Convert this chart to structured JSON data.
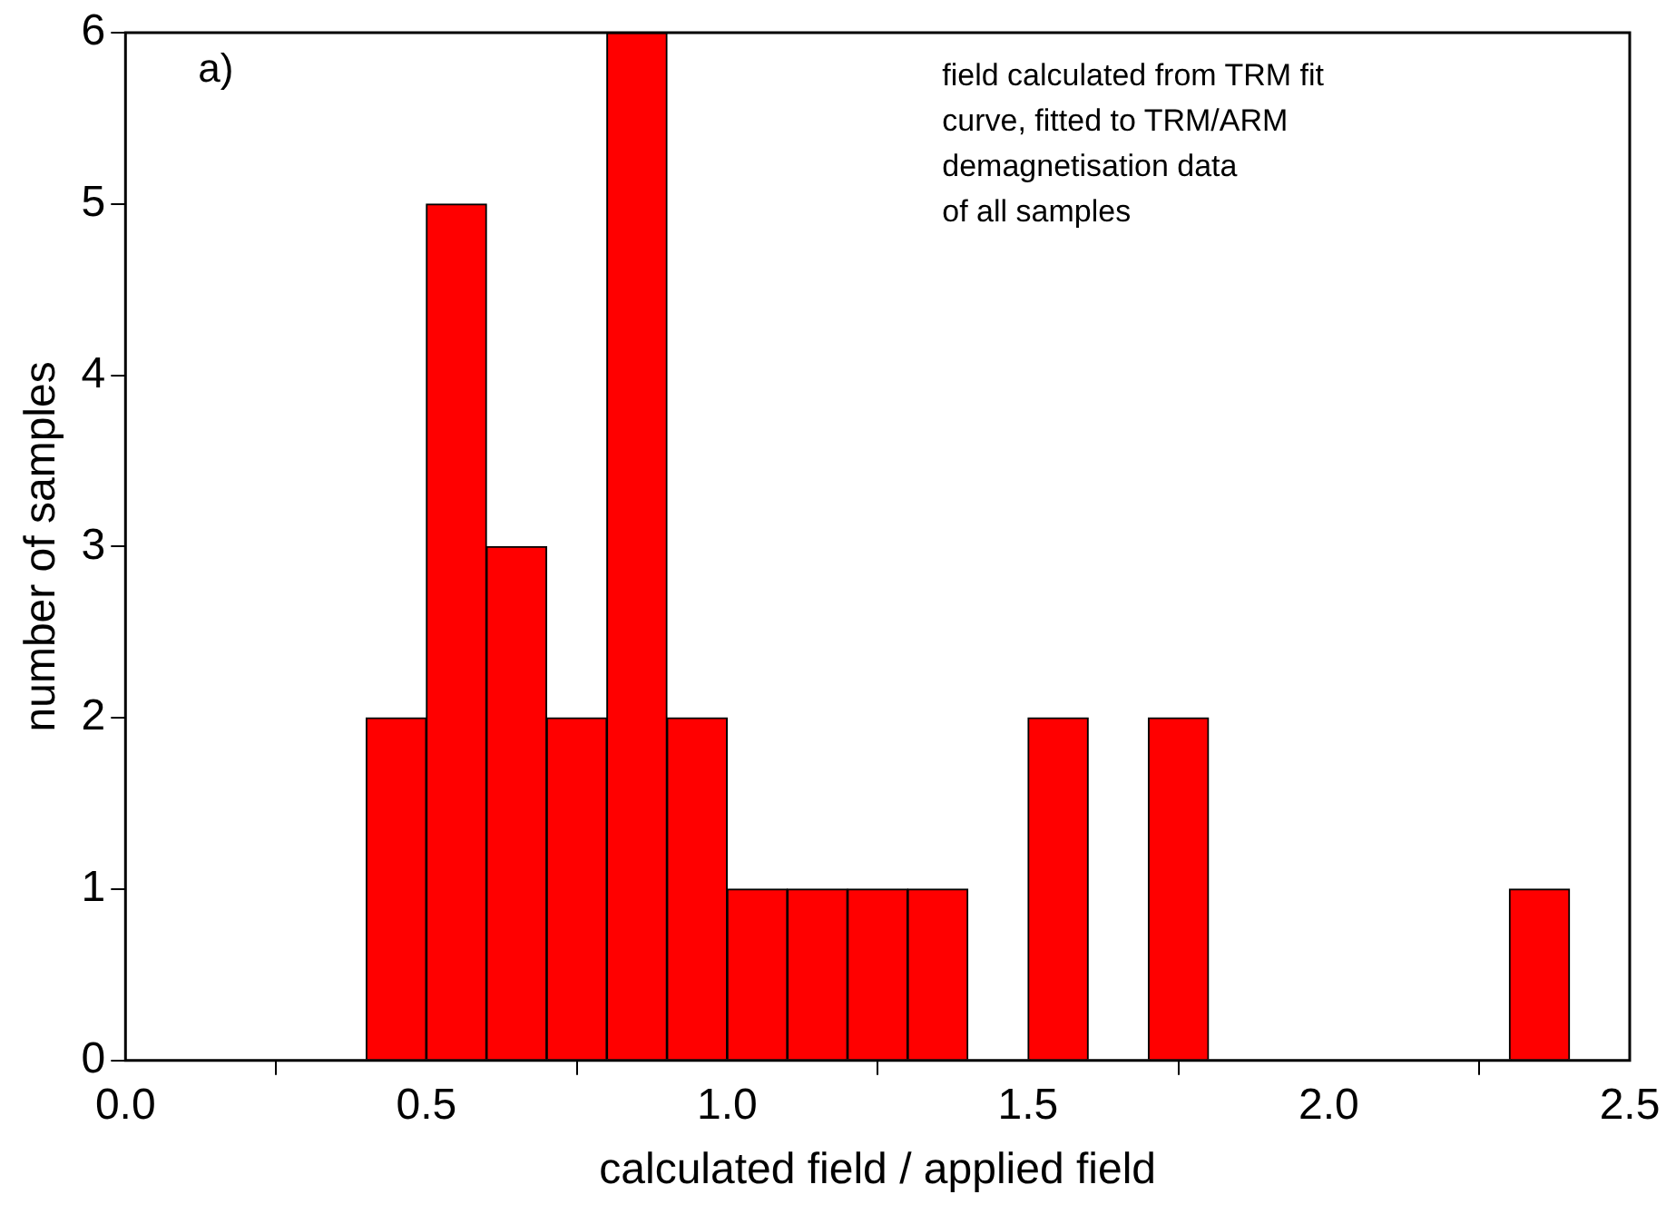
{
  "chart_data": {
    "type": "histogram",
    "xlabel": "calculated field / applied field",
    "ylabel": "number of samples",
    "bins": [
      0.4,
      0.5,
      0.6,
      0.7,
      0.8,
      0.9,
      1.0,
      1.1,
      1.2,
      1.3,
      1.4,
      1.5,
      1.6,
      1.7,
      1.8,
      1.9,
      2.0,
      2.1,
      2.2,
      2.3,
      2.4
    ],
    "values": [
      2,
      5,
      3,
      2,
      6,
      2,
      1,
      1,
      1,
      1,
      0,
      2,
      0,
      2,
      0,
      0,
      0,
      0,
      0,
      1
    ],
    "color": "#ff0000",
    "xlim": [
      0,
      2.5
    ],
    "xticks": [
      {
        "value": 0,
        "label": "0.0"
      },
      {
        "value": 0.5,
        "label": "0.5"
      },
      {
        "value": 1,
        "label": "1.0"
      },
      {
        "value": 1.5,
        "label": "1.5"
      },
      {
        "value": 2,
        "label": "2.0"
      },
      {
        "value": 2.5,
        "label": "2.5"
      }
    ],
    "ylim": [
      0,
      6
    ],
    "yticks": [
      0,
      1,
      2,
      3,
      4,
      5,
      6
    ],
    "grid": false,
    "legend": false,
    "annotations": [
      "a)",
      "field calculated from TRM fit\ncurve, fitted to TRM/ARM\ndemagnetisation data\nof all samples"
    ]
  }
}
